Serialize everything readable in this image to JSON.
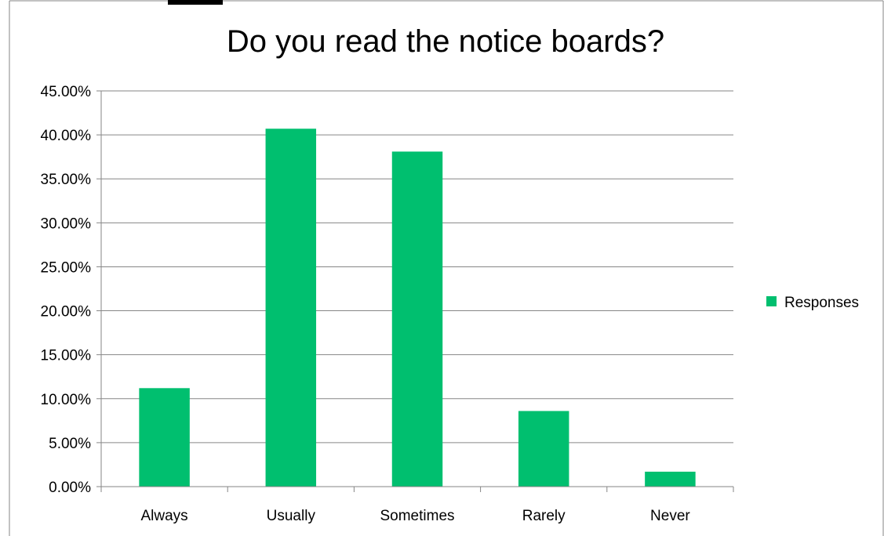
{
  "chart_data": {
    "type": "bar",
    "title": "Do you read the notice boards?",
    "categories": [
      "Always",
      "Usually",
      "Sometimes",
      "Rarely",
      "Never"
    ],
    "series": [
      {
        "name": "Responses",
        "values": [
          0.112,
          0.407,
          0.381,
          0.086,
          0.017
        ]
      }
    ],
    "ylim": [
      0,
      0.45
    ],
    "y_ticks": [
      0,
      0.05,
      0.1,
      0.15,
      0.2,
      0.25,
      0.3,
      0.35,
      0.4,
      0.45
    ],
    "y_tick_labels": [
      "0.00%",
      "5.00%",
      "10.00%",
      "15.00%",
      "20.00%",
      "25.00%",
      "30.00%",
      "35.00%",
      "40.00%",
      "45.00%"
    ],
    "xlabel": "",
    "ylabel": "",
    "grid": true,
    "legend_position": "right",
    "colors": {
      "bar": "#00BF6F",
      "grid": "#868686",
      "frame": "#868686"
    }
  }
}
